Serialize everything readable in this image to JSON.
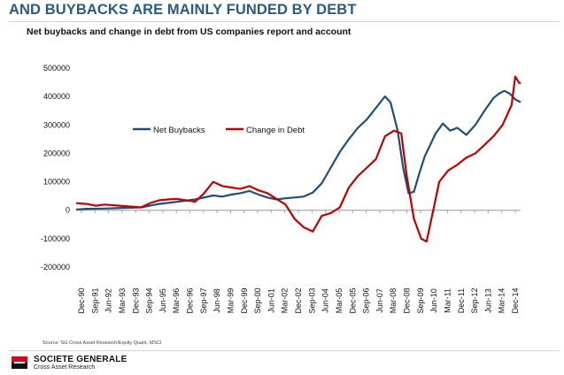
{
  "page": {
    "headline": "AND BUYBACKS ARE MAINLY FUNDED BY DEBT",
    "subtitle": "Net buybacks and change in debt from US companies report and account",
    "source": "Source: SG Cross Asset Research/Equity Quant, MSCI",
    "brand_name": "SOCIETE GENERALE",
    "brand_sub": "Cross Asset Research"
  },
  "colors": {
    "net_buybacks": "#1f4e79",
    "change_in_debt": "#c00000",
    "headline": "#2b5a86"
  },
  "chart_data": {
    "type": "line",
    "title": "Net buybacks and change in debt from US companies report and account",
    "xlabel": "",
    "ylabel": "",
    "ylim": [
      -200000,
      500000
    ],
    "yticks": [
      500000,
      400000,
      300000,
      200000,
      100000,
      0,
      -100000,
      -200000
    ],
    "ytick_labels": [
      "500000",
      "400000",
      "300000",
      "200000",
      "100000",
      "0",
      "-100000",
      "-200000"
    ],
    "x_start": 1990.917,
    "x_end": 2015.5,
    "x_tick_labels": [
      "Dec-90",
      "Sep-91",
      "Jun-92",
      "Mar-93",
      "Dec-93",
      "Sep-94",
      "Jun-95",
      "Mar-96",
      "Dec-96",
      "Sep-97",
      "Jun-98",
      "Mar-99",
      "Dec-99",
      "Sep-00",
      "Jun-01",
      "Mar-02",
      "Dec-02",
      "Sep-03",
      "Jun-04",
      "Mar-05",
      "Dec-05",
      "Sep-06",
      "Jun-07",
      "Mar-08",
      "Dec-08",
      "Sep-09",
      "Jun-10",
      "Mar-11",
      "Dec-11",
      "Sep-12",
      "Jun-13",
      "Mar-14",
      "Dec-14"
    ],
    "legend": {
      "placement": "top-left",
      "entries": [
        "Net Buybacks",
        "Change in Debt"
      ]
    },
    "series": [
      {
        "name": "Net Buybacks",
        "x": [
          1990.92,
          1991.5,
          1992.5,
          1993.5,
          1994.5,
          1995.5,
          1996.5,
          1997.5,
          1998.5,
          1999.0,
          1999.5,
          2000.0,
          2000.5,
          2001.0,
          2001.5,
          2002.0,
          2002.5,
          2003.0,
          2003.5,
          2004.0,
          2004.5,
          2005.0,
          2005.5,
          2006.0,
          2006.5,
          2007.0,
          2007.5,
          2008.0,
          2008.3,
          2008.7,
          2009.0,
          2009.3,
          2009.6,
          2009.9,
          2010.2,
          2010.5,
          2010.8,
          2011.2,
          2011.6,
          2012.0,
          2012.5,
          2013.0,
          2013.5,
          2014.0,
          2014.3,
          2014.6,
          2014.9,
          2015.2,
          2015.5
        ],
        "values": [
          3000,
          5000,
          6000,
          8000,
          10000,
          22000,
          30000,
          38000,
          52000,
          48000,
          55000,
          60000,
          68000,
          55000,
          45000,
          38000,
          42000,
          45000,
          48000,
          62000,
          95000,
          150000,
          205000,
          250000,
          290000,
          320000,
          360000,
          400000,
          380000,
          280000,
          150000,
          60000,
          65000,
          130000,
          190000,
          230000,
          270000,
          305000,
          280000,
          290000,
          265000,
          300000,
          350000,
          395000,
          410000,
          420000,
          410000,
          390000,
          380000
        ]
      },
      {
        "name": "Change in Debt",
        "x": [
          1990.92,
          1991.5,
          1992.0,
          1992.5,
          1993.5,
          1994.5,
          1995.0,
          1995.5,
          1996.0,
          1996.5,
          1997.0,
          1997.5,
          1998.0,
          1998.5,
          1999.0,
          1999.5,
          2000.0,
          2000.5,
          2001.0,
          2001.5,
          2002.0,
          2002.5,
          2003.0,
          2003.5,
          2004.0,
          2004.5,
          2005.0,
          2005.5,
          2006.0,
          2006.5,
          2007.0,
          2007.5,
          2008.0,
          2008.5,
          2008.9,
          2009.2,
          2009.6,
          2010.0,
          2010.3,
          2010.7,
          2011.0,
          2011.5,
          2012.0,
          2012.5,
          2013.0,
          2013.5,
          2014.0,
          2014.5,
          2015.0,
          2015.2,
          2015.4,
          2015.5
        ],
        "values": [
          25000,
          22000,
          16000,
          20000,
          15000,
          10000,
          25000,
          35000,
          38000,
          40000,
          35000,
          30000,
          60000,
          100000,
          85000,
          80000,
          75000,
          85000,
          70000,
          60000,
          40000,
          20000,
          -30000,
          -60000,
          -75000,
          -20000,
          -10000,
          10000,
          80000,
          120000,
          150000,
          180000,
          260000,
          280000,
          270000,
          120000,
          -30000,
          -100000,
          -110000,
          10000,
          100000,
          140000,
          160000,
          185000,
          200000,
          230000,
          260000,
          300000,
          370000,
          470000,
          450000,
          445000
        ]
      }
    ]
  }
}
